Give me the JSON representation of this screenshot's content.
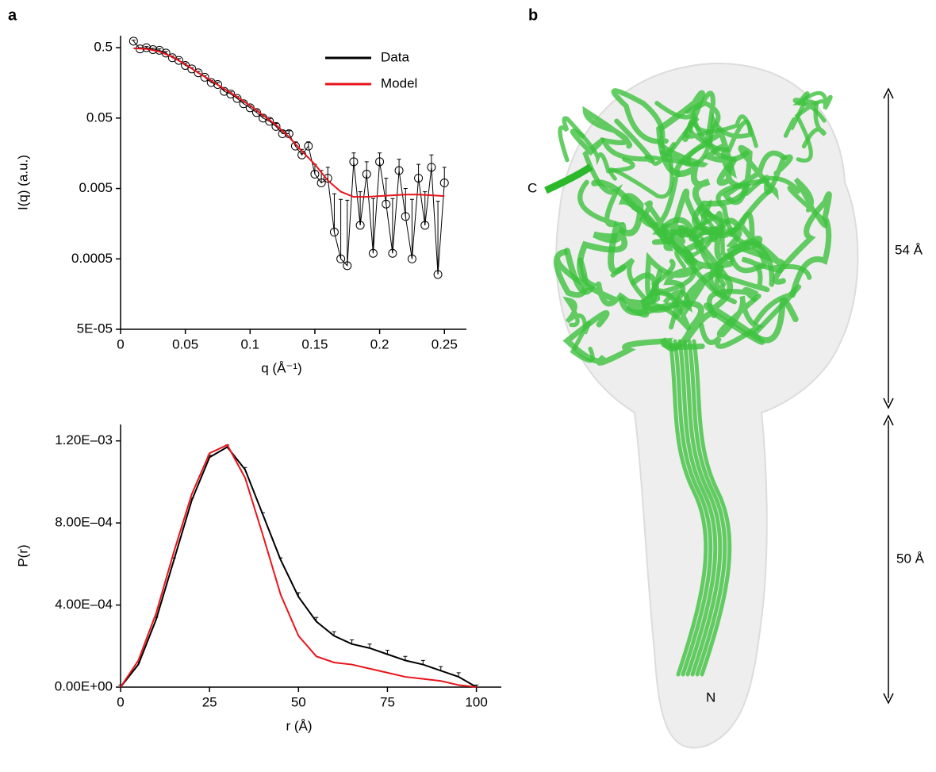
{
  "panels": {
    "a": "a",
    "b": "b"
  },
  "structure": {
    "c_terminus": "C",
    "n_terminus": "N",
    "head_length": "54 Å",
    "stem_length": "50 Å"
  },
  "chart_data": [
    {
      "type": "line",
      "xlabel": "q (Å⁻¹)",
      "ylabel": "I(q) (a.u.)",
      "yscale": "log",
      "xlim": [
        0,
        0.267
      ],
      "xticks": [
        0,
        0.05,
        0.1,
        0.15,
        0.2,
        0.25
      ],
      "ylim": [
        5e-05,
        0.74
      ],
      "yticks": [
        {
          "value": 5e-05,
          "label": "5E-05"
        },
        0.0005,
        0.005,
        0.05,
        0.5
      ],
      "legend": "upper right",
      "series": [
        {
          "name": "Data",
          "color": "#000000",
          "style": "markers+line",
          "x": [
            0.01,
            0.015,
            0.02,
            0.025,
            0.03,
            0.035,
            0.04,
            0.045,
            0.05,
            0.055,
            0.06,
            0.065,
            0.07,
            0.075,
            0.08,
            0.085,
            0.09,
            0.095,
            0.1,
            0.105,
            0.11,
            0.115,
            0.12,
            0.125,
            0.13,
            0.135,
            0.14,
            0.145,
            0.15,
            0.155,
            0.16,
            0.165,
            0.17,
            0.175,
            0.18,
            0.185,
            0.19,
            0.195,
            0.2,
            0.205,
            0.21,
            0.215,
            0.22,
            0.225,
            0.23,
            0.235,
            0.24,
            0.245,
            0.25
          ],
          "values": [
            0.62,
            0.48,
            0.5,
            0.47,
            0.46,
            0.42,
            0.36,
            0.33,
            0.28,
            0.25,
            0.22,
            0.19,
            0.16,
            0.15,
            0.12,
            0.11,
            0.095,
            0.08,
            0.07,
            0.06,
            0.05,
            0.045,
            0.038,
            0.03,
            0.03,
            0.02,
            0.015,
            0.02,
            0.008,
            0.006,
            0.007,
            0.0012,
            0.0005,
            0.0004,
            0.012,
            0.0015,
            0.008,
            0.0006,
            0.012,
            0.003,
            0.0006,
            0.009,
            0.002,
            0.0005,
            0.007,
            0.0015,
            0.01,
            0.0003,
            0.006
          ],
          "errors": [
            0.02,
            0.02,
            0.02,
            0.02,
            0.02,
            0.02,
            0.02,
            0.02,
            0.02,
            0.01,
            0.01,
            0.01,
            0.01,
            0.01,
            0.008,
            0.008,
            0.006,
            0.006,
            0.005,
            0.005,
            0.004,
            0.004,
            0.004,
            0.003,
            0.003,
            0.003,
            0.003,
            0.003,
            0.003,
            0.003,
            0.003,
            0.003,
            0.003,
            0.003,
            0.004,
            0.003,
            0.004,
            0.003,
            0.004,
            0.004,
            0.003,
            0.004,
            0.003,
            0.003,
            0.004,
            0.003,
            0.005,
            0.003,
            0.004
          ]
        },
        {
          "name": "Model",
          "color": "#e8141b",
          "style": "line",
          "x": [
            0.01,
            0.02,
            0.03,
            0.04,
            0.05,
            0.06,
            0.07,
            0.08,
            0.09,
            0.1,
            0.11,
            0.12,
            0.13,
            0.14,
            0.15,
            0.16,
            0.17,
            0.18,
            0.19,
            0.2,
            0.21,
            0.22,
            0.23,
            0.24,
            0.25
          ],
          "values": [
            0.49,
            0.48,
            0.44,
            0.37,
            0.29,
            0.22,
            0.17,
            0.13,
            0.1,
            0.075,
            0.055,
            0.04,
            0.027,
            0.017,
            0.011,
            0.0065,
            0.0045,
            0.0038,
            0.0038,
            0.0039,
            0.004,
            0.0041,
            0.0041,
            0.004,
            0.0039
          ]
        }
      ]
    },
    {
      "type": "line",
      "xlabel": "r (Å)",
      "ylabel": "P(r)",
      "xlim": [
        0,
        107
      ],
      "xticks": [
        0,
        25,
        50,
        75,
        100
      ],
      "ylim": [
        0,
        0.00128
      ],
      "yticks": [
        {
          "value": 0,
          "label": "0.00E+00"
        },
        {
          "value": 0.0004,
          "label": "4.00E–04"
        },
        {
          "value": 0.0008,
          "label": "8.00E–04"
        },
        {
          "value": 0.0012,
          "label": "1.20E–03"
        }
      ],
      "series": [
        {
          "color": "#000000",
          "style": "errorbars+line",
          "x": [
            0,
            5,
            10,
            15,
            20,
            25,
            30,
            35,
            40,
            45,
            50,
            55,
            60,
            65,
            70,
            75,
            80,
            85,
            90,
            95,
            100
          ],
          "values": [
            0,
            0.00011,
            0.00033,
            0.00062,
            0.00091,
            0.00112,
            0.00117,
            0.00106,
            0.00084,
            0.00062,
            0.00044,
            0.00032,
            0.00025,
            0.00021,
            0.00019,
            0.00016,
            0.00013,
            0.00011,
            8e-05,
            5e-05,
            0
          ],
          "errors": [
            1e-05,
            1e-05,
            1e-05,
            1e-05,
            1e-05,
            1e-05,
            1e-05,
            1e-05,
            1e-05,
            1e-05,
            2e-05,
            2e-05,
            2e-05,
            2e-05,
            2e-05,
            2e-05,
            2e-05,
            2e-05,
            2e-05,
            2e-05,
            1e-05
          ]
        },
        {
          "color": "#e8141b",
          "style": "line",
          "x": [
            0,
            5,
            10,
            15,
            20,
            25,
            30,
            35,
            40,
            45,
            50,
            55,
            60,
            65,
            70,
            75,
            80,
            85,
            90,
            95,
            100
          ],
          "values": [
            0,
            0.00013,
            0.00036,
            0.00066,
            0.00094,
            0.00114,
            0.00118,
            0.00102,
            0.00074,
            0.00045,
            0.00025,
            0.00015,
            0.00012,
            0.00011,
            9e-05,
            7e-05,
            5e-05,
            4e-05,
            3e-05,
            1e-05,
            0
          ]
        }
      ]
    }
  ]
}
